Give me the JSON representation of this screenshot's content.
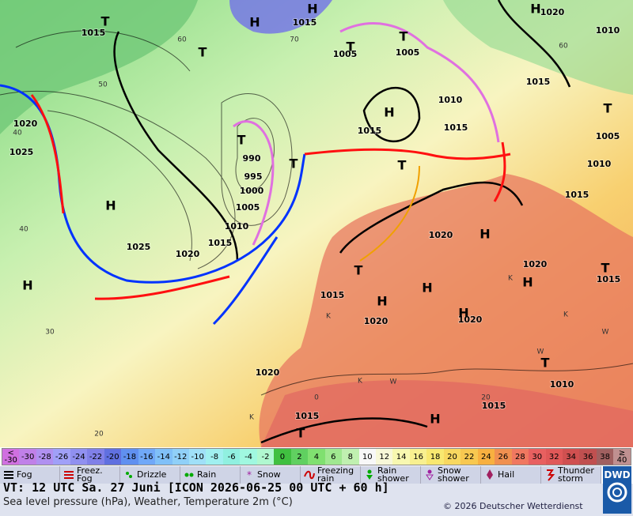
{
  "map": {
    "pressure_labels": [
      "1015",
      "1015",
      "1005",
      "1005",
      "1010",
      "1020",
      "1015",
      "1010",
      "1015",
      "1015",
      "1005",
      "1010",
      "1015",
      "1020",
      "1025",
      "990",
      "995",
      "1000",
      "1005",
      "1010",
      "1015",
      "1025",
      "1020",
      "1020",
      "1020",
      "1015",
      "1020",
      "1020",
      "1020",
      "1015",
      "1015",
      "1010",
      "1015"
    ],
    "pressure_centers": [
      "H",
      "H",
      "H",
      "T",
      "T",
      "T",
      "T",
      "T",
      "H",
      "T",
      "T",
      "T",
      "H",
      "H",
      "H",
      "T",
      "H",
      "T",
      "H",
      "H",
      "H",
      "T",
      "H",
      "T"
    ],
    "isotherm_labels": [
      "60",
      "50",
      "40",
      "40",
      "30",
      "20",
      "60",
      "20",
      "0",
      "70"
    ],
    "region_letters": [
      "K",
      "K",
      "K",
      "W",
      "W",
      "K",
      "W",
      "K"
    ]
  },
  "colorbar": {
    "labels": [
      "< -30",
      -30,
      -28,
      -26,
      -24,
      -22,
      -20,
      -18,
      -16,
      -14,
      -12,
      -10,
      -8,
      -6,
      -4,
      -2,
      0,
      2,
      4,
      6,
      8,
      10,
      12,
      14,
      16,
      18,
      20,
      22,
      24,
      26,
      28,
      30,
      32,
      34,
      36,
      38,
      "≥ 40"
    ],
    "colors": [
      "#d070e0",
      "#c080e8",
      "#b090f0",
      "#a0a0f8",
      "#9090f0",
      "#8080e8",
      "#6070e0",
      "#6090f0",
      "#70a8f8",
      "#80c0f8",
      "#90d0f8",
      "#a0e0f8",
      "#a0f0f0",
      "#90f0e0",
      "#a0f8e0",
      "#b0f8d0",
      "#40c040",
      "#60d060",
      "#80e070",
      "#a0e890",
      "#c0f0b0",
      "#f8f8f8",
      "#f8f8d8",
      "#f8f8b0",
      "#f8f090",
      "#f8e870",
      "#f8d860",
      "#f8c850",
      "#f8b040",
      "#f09050",
      "#f07860",
      "#e86060",
      "#e05858",
      "#d05050",
      "#c05050",
      "#a06060",
      "#c09090"
    ]
  },
  "legend": [
    "Fog",
    "Freez. Fog",
    "Drizzle",
    "Rain",
    "Snow",
    "Freezing rain",
    "Rain shower",
    "Snow shower",
    "Hail",
    "Thunder storm"
  ],
  "footer": {
    "valid_time": "VT: 12 UTC Sa.  27 Juni [ICON 2026-06-25  00 UTC + 60 h]",
    "description": "Sea level pressure (hPa), Weather, Temperature 2m (°C)",
    "copyright": "© 2026 Deutscher Wetterdienst",
    "logo": "DWD"
  }
}
